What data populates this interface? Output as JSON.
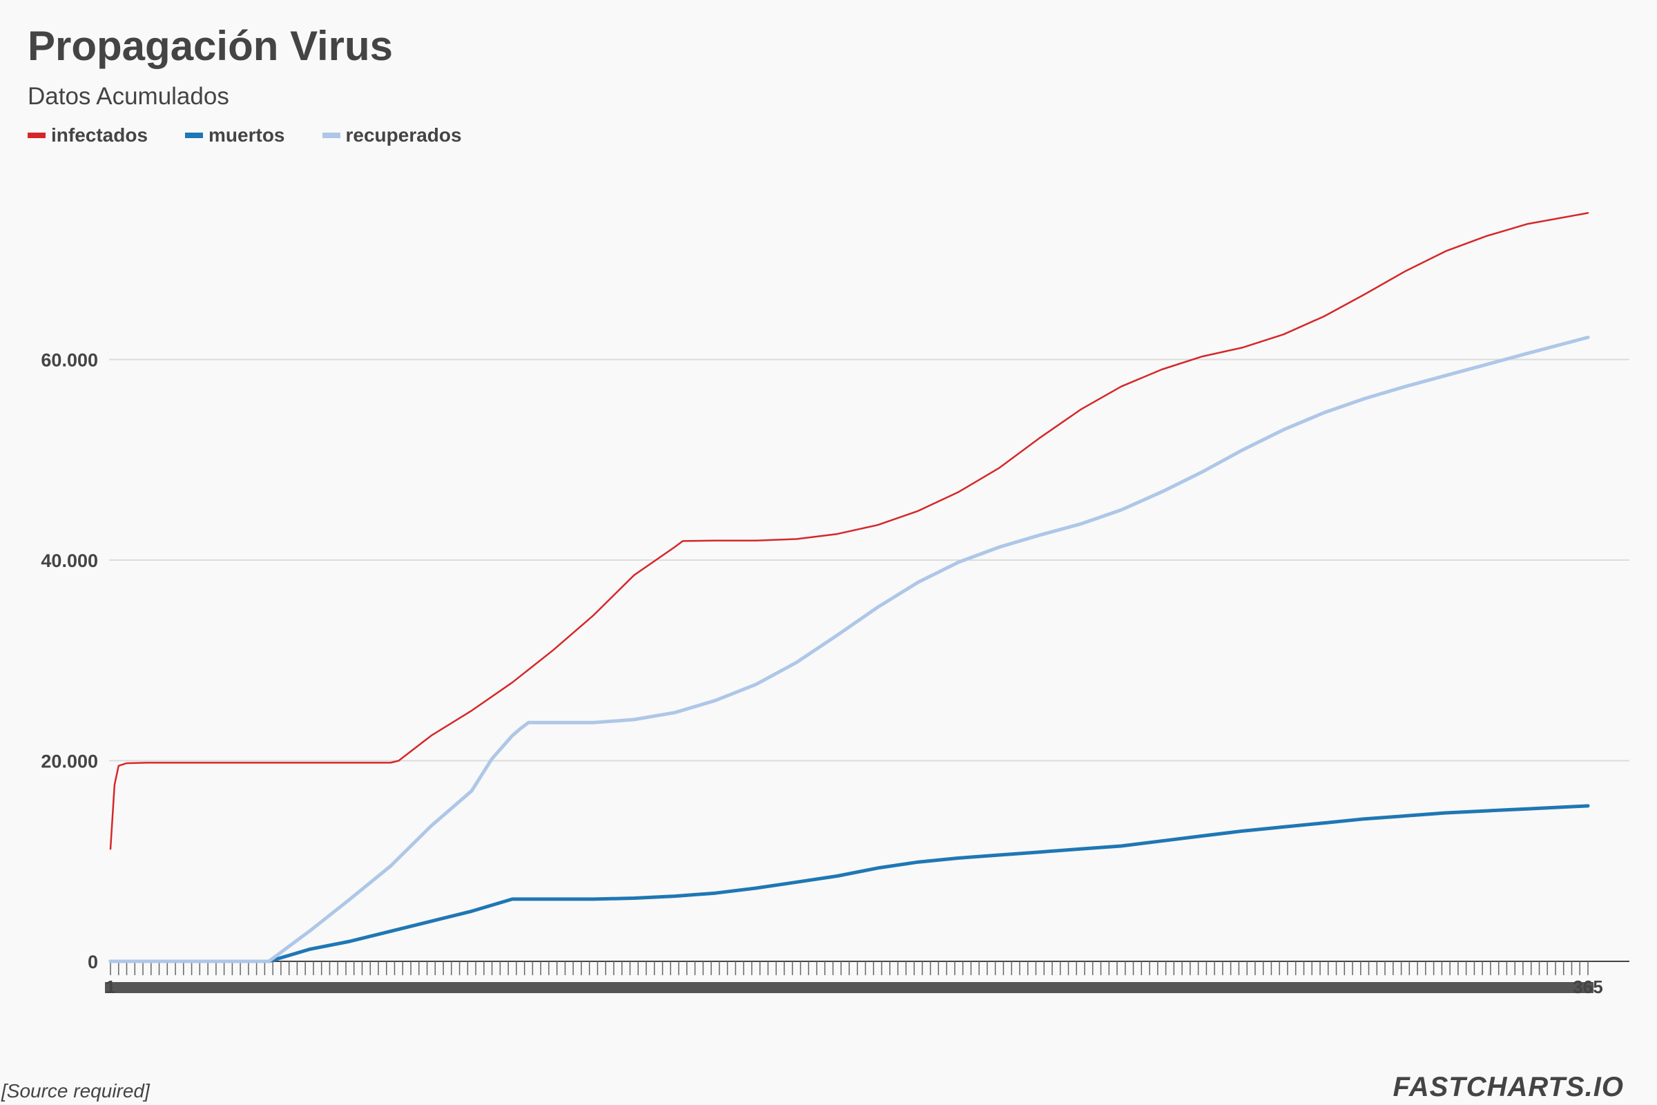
{
  "chart_data": {
    "type": "line",
    "title": "Propagación Virus",
    "subtitle": "Datos Acumulados",
    "xlabel": "",
    "ylabel": "",
    "xlim": [
      1,
      365
    ],
    "ylim": [
      0,
      80000
    ],
    "y_ticks": [
      0,
      20000,
      40000,
      60000
    ],
    "y_tick_labels": [
      "0",
      "20.000",
      "40.000",
      "60.000"
    ],
    "grid": true,
    "legend": "top-left",
    "series": [
      {
        "name": "infectados",
        "color": "#d62728",
        "points": [
          [
            1,
            11200
          ],
          [
            2,
            17600
          ],
          [
            3,
            19500
          ],
          [
            5,
            19750
          ],
          [
            10,
            19800
          ],
          [
            50,
            19800
          ],
          [
            70,
            19800
          ],
          [
            72,
            20000
          ],
          [
            80,
            22500
          ],
          [
            90,
            25000
          ],
          [
            100,
            27800
          ],
          [
            110,
            31000
          ],
          [
            120,
            34500
          ],
          [
            130,
            38500
          ],
          [
            140,
            41300
          ],
          [
            142,
            41900
          ],
          [
            150,
            41950
          ],
          [
            160,
            41950
          ],
          [
            170,
            42100
          ],
          [
            180,
            42600
          ],
          [
            190,
            43500
          ],
          [
            200,
            44900
          ],
          [
            210,
            46800
          ],
          [
            220,
            49200
          ],
          [
            230,
            52200
          ],
          [
            240,
            55000
          ],
          [
            250,
            57300
          ],
          [
            260,
            59000
          ],
          [
            270,
            60300
          ],
          [
            280,
            61200
          ],
          [
            290,
            62500
          ],
          [
            300,
            64300
          ],
          [
            310,
            66500
          ],
          [
            320,
            68800
          ],
          [
            330,
            70800
          ],
          [
            340,
            72300
          ],
          [
            350,
            73500
          ],
          [
            365,
            74600
          ]
        ]
      },
      {
        "name": "muertos",
        "color": "#1f77b4",
        "points": [
          [
            1,
            0
          ],
          [
            40,
            0
          ],
          [
            41,
            120
          ],
          [
            50,
            1200
          ],
          [
            60,
            2000
          ],
          [
            70,
            3000
          ],
          [
            80,
            4000
          ],
          [
            90,
            5000
          ],
          [
            100,
            6200
          ],
          [
            110,
            6200
          ],
          [
            120,
            6200
          ],
          [
            130,
            6300
          ],
          [
            140,
            6500
          ],
          [
            150,
            6800
          ],
          [
            160,
            7300
          ],
          [
            170,
            7900
          ],
          [
            180,
            8500
          ],
          [
            190,
            9300
          ],
          [
            200,
            9900
          ],
          [
            210,
            10300
          ],
          [
            220,
            10600
          ],
          [
            230,
            10900
          ],
          [
            240,
            11200
          ],
          [
            250,
            11500
          ],
          [
            260,
            12000
          ],
          [
            270,
            12500
          ],
          [
            280,
            13000
          ],
          [
            290,
            13400
          ],
          [
            300,
            13800
          ],
          [
            310,
            14200
          ],
          [
            320,
            14500
          ],
          [
            330,
            14800
          ],
          [
            340,
            15000
          ],
          [
            350,
            15200
          ],
          [
            365,
            15500
          ]
        ]
      },
      {
        "name": "recuperados",
        "color": "#aec7e8",
        "points": [
          [
            1,
            0
          ],
          [
            40,
            0
          ],
          [
            41,
            300
          ],
          [
            50,
            3000
          ],
          [
            60,
            6200
          ],
          [
            70,
            9500
          ],
          [
            80,
            13500
          ],
          [
            90,
            17000
          ],
          [
            95,
            20200
          ],
          [
            100,
            22500
          ],
          [
            102,
            23200
          ],
          [
            104,
            23800
          ],
          [
            110,
            23800
          ],
          [
            120,
            23800
          ],
          [
            130,
            24100
          ],
          [
            140,
            24800
          ],
          [
            150,
            26000
          ],
          [
            160,
            27600
          ],
          [
            170,
            29800
          ],
          [
            180,
            32500
          ],
          [
            190,
            35300
          ],
          [
            200,
            37800
          ],
          [
            210,
            39800
          ],
          [
            220,
            41300
          ],
          [
            230,
            42500
          ],
          [
            240,
            43600
          ],
          [
            250,
            45000
          ],
          [
            260,
            46800
          ],
          [
            270,
            48800
          ],
          [
            280,
            51000
          ],
          [
            290,
            53000
          ],
          [
            300,
            54700
          ],
          [
            310,
            56100
          ],
          [
            320,
            57300
          ],
          [
            330,
            58400
          ],
          [
            340,
            59500
          ],
          [
            350,
            60600
          ],
          [
            365,
            62200
          ]
        ]
      }
    ],
    "x_tick_labels": [
      "1",
      "365"
    ]
  },
  "source": "[Source required]",
  "brand": "FASTCHARTS.IO"
}
